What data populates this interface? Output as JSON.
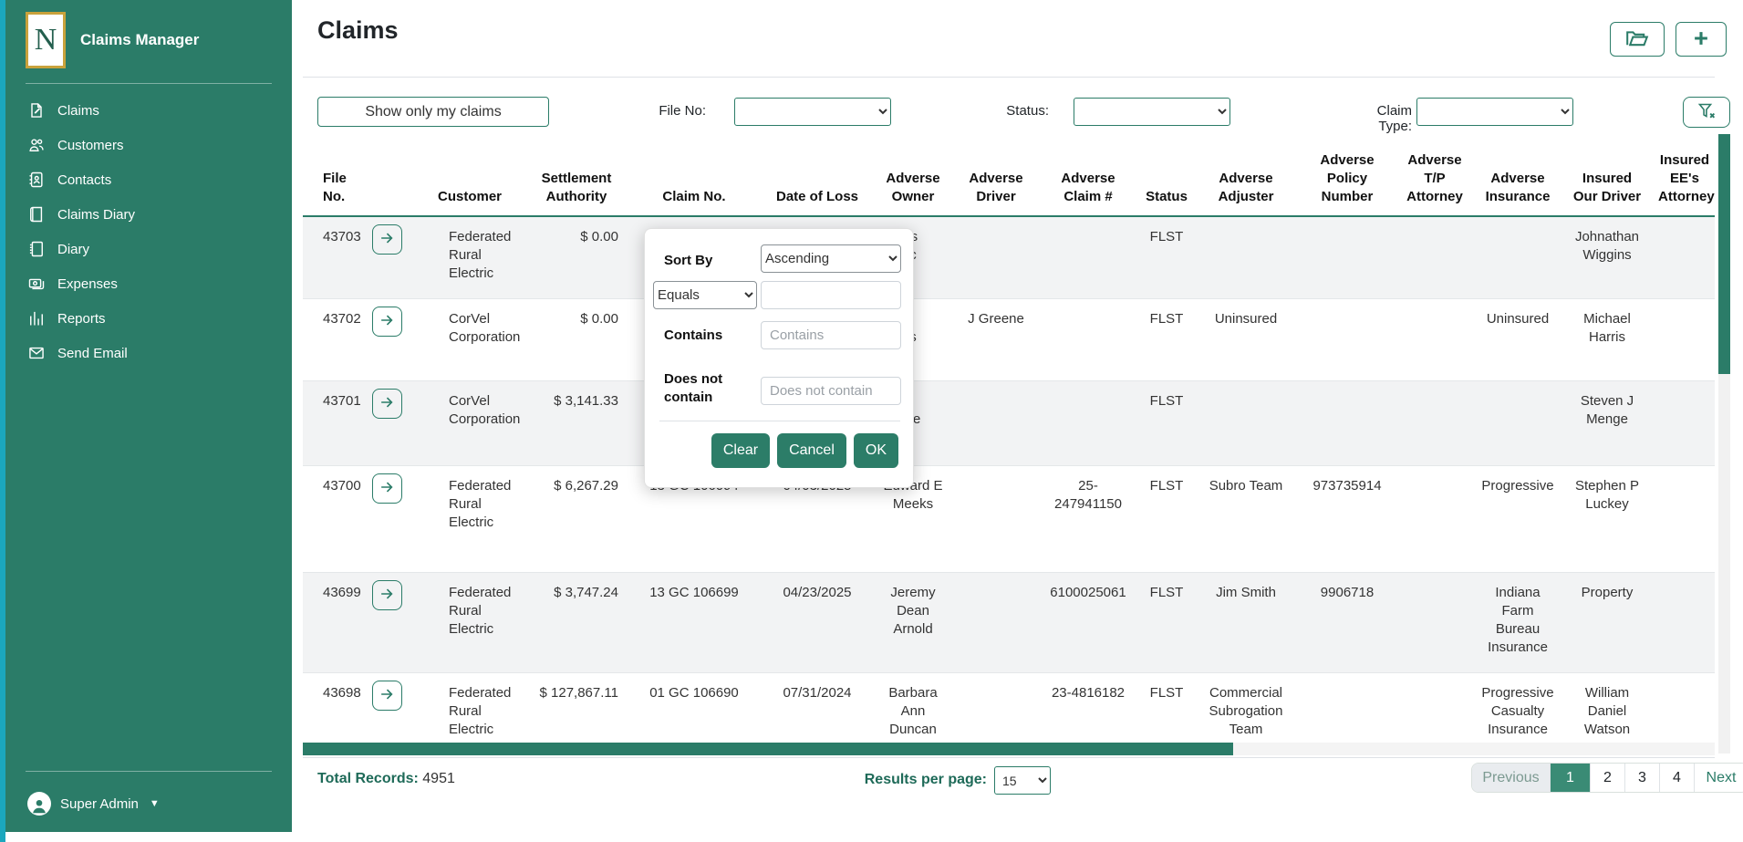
{
  "app": {
    "logo_letter": "N",
    "title": "Claims Manager"
  },
  "sidebar": {
    "items": [
      {
        "id": "claims",
        "icon": "claims-icon",
        "label": "Claims"
      },
      {
        "id": "customers",
        "icon": "customers-icon",
        "label": "Customers"
      },
      {
        "id": "contacts",
        "icon": "contacts-icon",
        "label": "Contacts"
      },
      {
        "id": "claims-diary",
        "icon": "claims-diary-icon",
        "label": "Claims Diary"
      },
      {
        "id": "diary",
        "icon": "diary-icon",
        "label": "Diary"
      },
      {
        "id": "expenses",
        "icon": "expenses-icon",
        "label": "Expenses"
      },
      {
        "id": "reports",
        "icon": "reports-icon",
        "label": "Reports"
      },
      {
        "id": "send-email",
        "icon": "send-email-icon",
        "label": "Send Email"
      }
    ],
    "user": {
      "name": "Super Admin"
    }
  },
  "header": {
    "title": "Claims"
  },
  "filters": {
    "show_only_button": "Show only my claims",
    "file_no_label": "File No:",
    "status_label": "Status:",
    "claim_type_label": "Claim Type:"
  },
  "sort_popup": {
    "sort_by_label": "Sort By",
    "sort_direction_value": "Ascending",
    "operator_value": "Equals",
    "equals_value": "",
    "contains_label": "Contains",
    "contains_placeholder": "Contains",
    "not_contains_label": "Does not contain",
    "not_contains_placeholder": "Does not contain",
    "clear_label": "Clear",
    "cancel_label": "Cancel",
    "ok_label": "OK"
  },
  "table": {
    "columns": [
      "File No.",
      "",
      "Customer",
      "Settlement Authority",
      "Claim No.",
      "Date of Loss",
      "Adverse Owner",
      "Adverse Driver",
      "Adverse Claim #",
      "Status",
      "Adverse Adjuster",
      "Adverse Policy Number",
      "Adverse T/P Attorney",
      "Adverse Insurance",
      "Insured Our Driver",
      "Insured EE's Attorney"
    ],
    "rows": [
      {
        "file_no": "43703",
        "customer": "Federated Rural Electric",
        "settlement": "$ 0.00",
        "claim_no": "",
        "date_of_loss": "",
        "adverse_owner": "'s\nc",
        "adverse_driver": "",
        "adverse_claim": "",
        "status": "FLST",
        "adverse_adjuster": "",
        "adverse_policy": "",
        "adverse_tp_attorney": "",
        "adverse_insurance": "",
        "insured_our_driver": "Johnathan Wiggins",
        "insured_ee_attorney": ""
      },
      {
        "file_no": "43702",
        "customer": "CorVel Corporation",
        "settlement": "$ 0.00",
        "claim_no": "",
        "date_of_loss": "",
        "adverse_owner": "\ns",
        "adverse_driver": "J Greene",
        "adverse_claim": "",
        "status": "FLST",
        "adverse_adjuster": "Uninsured",
        "adverse_policy": "",
        "adverse_tp_attorney": "",
        "adverse_insurance": "Uninsured",
        "insured_our_driver": "Michael Harris",
        "insured_ee_attorney": ""
      },
      {
        "file_no": "43701",
        "customer": "CorVel Corporation",
        "settlement": "$ 3,141.33",
        "claim_no": "",
        "date_of_loss": "",
        "adverse_owner": "\nee",
        "adverse_driver": "",
        "adverse_claim": "",
        "status": "FLST",
        "adverse_adjuster": "",
        "adverse_policy": "",
        "adverse_tp_attorney": "",
        "adverse_insurance": "",
        "insured_our_driver": "Steven J Menge",
        "insured_ee_attorney": ""
      },
      {
        "file_no": "43700",
        "customer": "Federated Rural Electric",
        "settlement": "$ 6,267.29",
        "claim_no": "13 GC 106094",
        "date_of_loss": "04/03/2025",
        "adverse_owner": "Edward E Meeks",
        "adverse_driver": "",
        "adverse_claim": "25-247941150",
        "status": "FLST",
        "adverse_adjuster": "Subro Team",
        "adverse_policy": "973735914",
        "adverse_tp_attorney": "",
        "adverse_insurance": "Progressive",
        "insured_our_driver": "Stephen P Luckey",
        "insured_ee_attorney": ""
      },
      {
        "file_no": "43699",
        "customer": "Federated Rural Electric",
        "settlement": "$ 3,747.24",
        "claim_no": "13 GC 106699",
        "date_of_loss": "04/23/2025",
        "adverse_owner": "Jeremy Dean Arnold",
        "adverse_driver": "",
        "adverse_claim": "6100025061",
        "status": "FLST",
        "adverse_adjuster": "Jim Smith",
        "adverse_policy": "9906718",
        "adverse_tp_attorney": "",
        "adverse_insurance": "Indiana Farm Bureau Insurance",
        "insured_our_driver": "Property",
        "insured_ee_attorney": ""
      },
      {
        "file_no": "43698",
        "customer": "Federated Rural Electric",
        "settlement": "$ 127,867.11",
        "claim_no": "01 GC 106690",
        "date_of_loss": "07/31/2024",
        "adverse_owner": "Barbara Ann Duncan",
        "adverse_driver": "",
        "adverse_claim": "23-4816182",
        "status": "FLST",
        "adverse_adjuster": "Commercial Subrogation Team",
        "adverse_policy": "",
        "adverse_tp_attorney": "",
        "adverse_insurance": "Progressive Casualty Insurance",
        "insured_our_driver": "William Daniel Watson",
        "insured_ee_attorney": ""
      }
    ]
  },
  "footer": {
    "total_records_label": "Total Records:",
    "total_records": "4951",
    "results_per_page_label": "Results per page:",
    "results_per_page": "15",
    "pagination": {
      "previous": "Previous",
      "pages": [
        "1",
        "2",
        "3",
        "4"
      ],
      "active": "1",
      "next": "Next"
    }
  },
  "colors": {
    "sidebar": "#2b7c68",
    "accent": "#2b7c68",
    "edge_strip": "#1ba7bd",
    "logo_border": "#c9a23c",
    "active_page": "#3a8b75",
    "stripe": "#f2f3f4"
  }
}
